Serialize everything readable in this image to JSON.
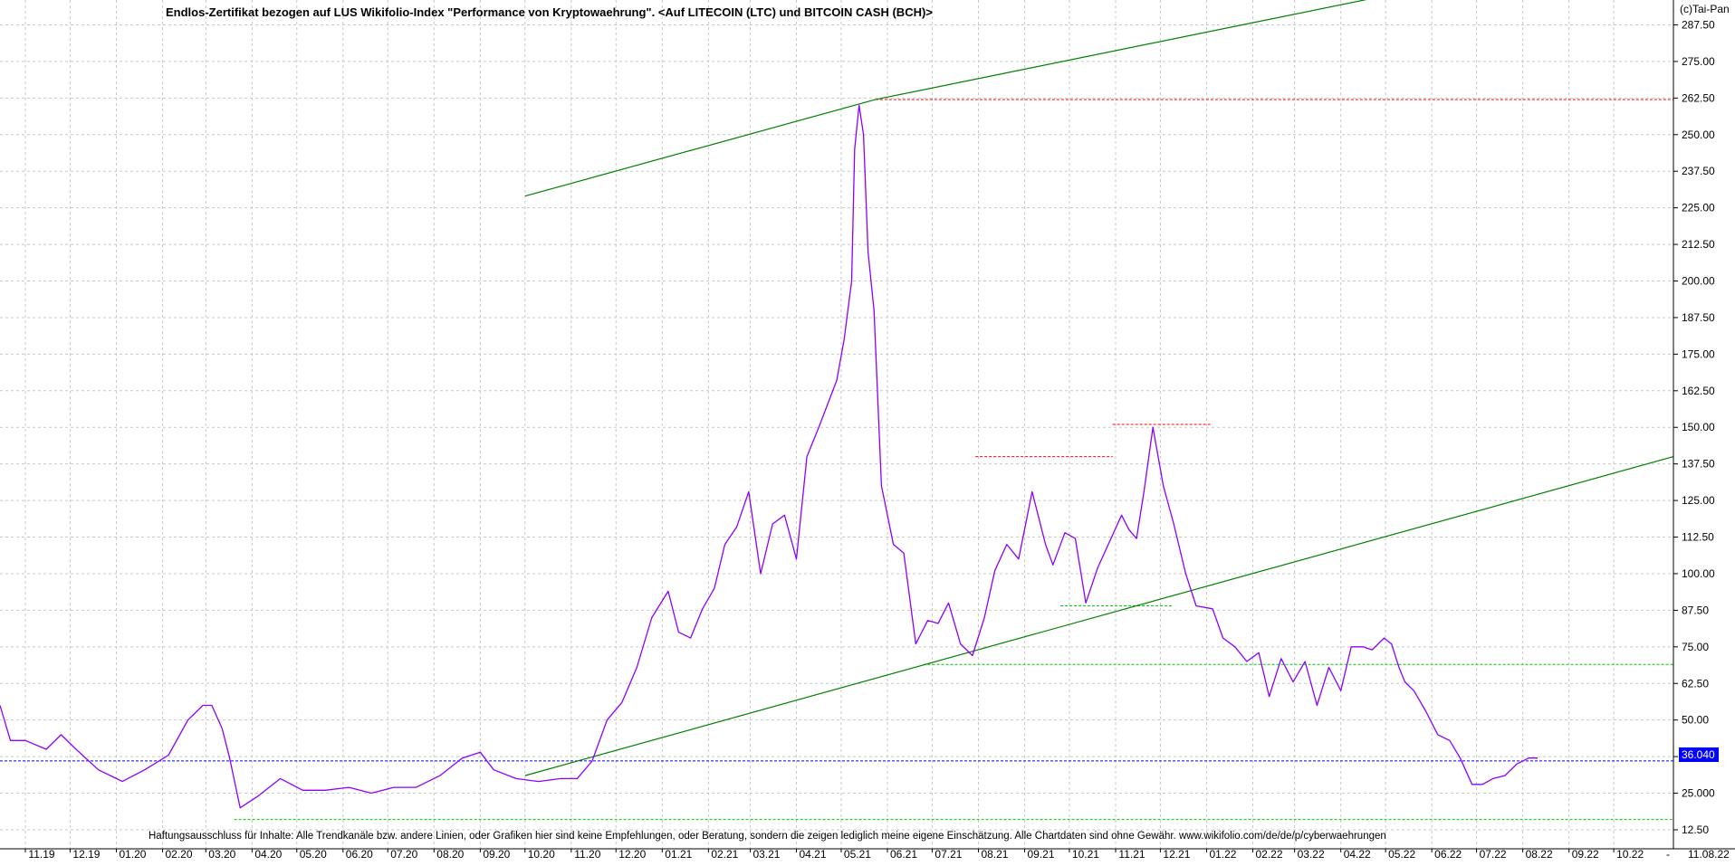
{
  "chart_data": {
    "type": "line",
    "title": "Endlos-Zertifikat bezogen auf LUS Wikifolio-Index \"Performance von Kryptowaehrung\". <Auf LITECOIN (LTC) und BITCOIN CASH (BCH)>",
    "copyright": "(c)Tai-Pan",
    "disclaimer": "Haftungsausschluss für Inhalte: Alle Trendkanäle bzw. andere Linien, oder Grafiken hier sind keine Empfehlungen, oder Beratung, sondern die zeigen lediglich meine eigene Einschätzung. Alle Chartdaten sind ohne Gewähr.  www.wikifolio.com/de/de/p/cyberwaehrungen",
    "current_value_label": "36.040",
    "current_date_label": "11.08.22",
    "x_ticks": [
      "11.19",
      "12.19",
      "01.20",
      "02.20",
      "03.20",
      "04.20",
      "05.20",
      "06.20",
      "07.20",
      "08.20",
      "09.20",
      "10.20",
      "11.20",
      "12.20",
      "01.21",
      "02.21",
      "03.21",
      "04.21",
      "05.21",
      "06.21",
      "07.21",
      "08.21",
      "09.21",
      "10.21",
      "11.21",
      "12.21",
      "01.22",
      "02.22",
      "03.22",
      "04.22",
      "05.22",
      "06.22",
      "07.22",
      "08.22",
      "09.22",
      "10.22"
    ],
    "x_tick_suffix": "-",
    "y_ticks": [
      "12.50",
      "25.000",
      "37.50",
      "50.00",
      "62.50",
      "75.00",
      "87.50",
      "100.00",
      "112.50",
      "125.00",
      "137.50",
      "150.00",
      "162.50",
      "175.00",
      "187.50",
      "200.00",
      "212.50",
      "225.00",
      "237.50",
      "250.00",
      "262.50",
      "275.00",
      "287.50"
    ],
    "ylim": [
      6,
      296
    ],
    "x_range": [
      "2019-10-15",
      "2022-11-10"
    ],
    "grid": true,
    "series": [
      {
        "color": "#8b00ff",
        "x": [
          "2019-10-15",
          "2019-10-22",
          "2019-11-01",
          "2019-11-15",
          "2019-11-25",
          "2019-12-05",
          "2019-12-20",
          "2020-01-05",
          "2020-01-20",
          "2020-02-05",
          "2020-02-18",
          "2020-02-28",
          "2020-03-05",
          "2020-03-12",
          "2020-03-17",
          "2020-03-24",
          "2020-04-05",
          "2020-04-20",
          "2020-05-05",
          "2020-05-20",
          "2020-06-05",
          "2020-06-20",
          "2020-07-05",
          "2020-07-20",
          "2020-08-05",
          "2020-08-20",
          "2020-09-01",
          "2020-09-10",
          "2020-09-25",
          "2020-10-10",
          "2020-10-25",
          "2020-11-05",
          "2020-11-15",
          "2020-11-25",
          "2020-12-05",
          "2020-12-15",
          "2020-12-25",
          "2021-01-05",
          "2021-01-12",
          "2021-01-20",
          "2021-01-28",
          "2021-02-05",
          "2021-02-12",
          "2021-02-20",
          "2021-02-28",
          "2021-03-08",
          "2021-03-16",
          "2021-03-24",
          "2021-04-01",
          "2021-04-08",
          "2021-04-16",
          "2021-04-22",
          "2021-04-28",
          "2021-05-03",
          "2021-05-08",
          "2021-05-10",
          "2021-05-13",
          "2021-05-16",
          "2021-05-19",
          "2021-05-23",
          "2021-05-28",
          "2021-06-05",
          "2021-06-12",
          "2021-06-20",
          "2021-06-28",
          "2021-07-05",
          "2021-07-12",
          "2021-07-20",
          "2021-07-28",
          "2021-08-05",
          "2021-08-12",
          "2021-08-20",
          "2021-08-28",
          "2021-09-06",
          "2021-09-10",
          "2021-09-15",
          "2021-09-20",
          "2021-09-28",
          "2021-10-05",
          "2021-10-12",
          "2021-10-20",
          "2021-10-28",
          "2021-11-05",
          "2021-11-10",
          "2021-11-15",
          "2021-11-20",
          "2021-11-26",
          "2021-12-03",
          "2021-12-10",
          "2021-12-18",
          "2021-12-25",
          "2022-01-05",
          "2022-01-12",
          "2022-01-20",
          "2022-01-28",
          "2022-02-05",
          "2022-02-12",
          "2022-02-20",
          "2022-02-28",
          "2022-03-08",
          "2022-03-16",
          "2022-03-24",
          "2022-04-01",
          "2022-04-08",
          "2022-04-16",
          "2022-04-22",
          "2022-04-30",
          "2022-05-05",
          "2022-05-10",
          "2022-05-14",
          "2022-05-20",
          "2022-05-28",
          "2022-06-05",
          "2022-06-13",
          "2022-06-20",
          "2022-06-28",
          "2022-07-05",
          "2022-07-12",
          "2022-07-20",
          "2022-07-28",
          "2022-08-05",
          "2022-08-11"
        ],
        "y": [
          55,
          43,
          43,
          40,
          45,
          40,
          33,
          29,
          33,
          38,
          50,
          55,
          55,
          47,
          37,
          20,
          24,
          30,
          26,
          26,
          27,
          25,
          27,
          27,
          31,
          37,
          39,
          33,
          30,
          29,
          30,
          30,
          36,
          50,
          56,
          68,
          85,
          94,
          80,
          78,
          88,
          95,
          110,
          116,
          128,
          100,
          117,
          120,
          105,
          140,
          150,
          158,
          166,
          180,
          200,
          245,
          260,
          250,
          210,
          190,
          130,
          110,
          107,
          76,
          84,
          83,
          90,
          76,
          72,
          85,
          101,
          110,
          105,
          128,
          120,
          110,
          103,
          114,
          112,
          90,
          102,
          111,
          120,
          115,
          112,
          128,
          150,
          130,
          117,
          100,
          89,
          88,
          78,
          75,
          70,
          73,
          58,
          71,
          63,
          70,
          55,
          68,
          60,
          75,
          75,
          74,
          78,
          76,
          68,
          63,
          60,
          53,
          45,
          43,
          37,
          28,
          28,
          30,
          31,
          35,
          37,
          37
        ]
      }
    ],
    "annotations": {
      "horizontal_reference_lines": [
        {
          "color": "#0000ff",
          "value": 36.04,
          "style": "dotted"
        },
        {
          "color": "#ff0000",
          "value": 262,
          "from": "2021-05-24",
          "to": "2022-11-10",
          "style": "dotted"
        },
        {
          "color": "#ff0000",
          "value": 140,
          "from": "2021-07-30",
          "to": "2021-10-30",
          "style": "dotted"
        },
        {
          "color": "#ff0000",
          "value": 151,
          "from": "2021-10-30",
          "to": "2022-01-05",
          "style": "dotted"
        },
        {
          "color": "#00cc00",
          "value": 89,
          "from": "2021-09-25",
          "to": "2021-12-10",
          "style": "dotted"
        },
        {
          "color": "#00cc00",
          "value": 69,
          "from": "2021-06-25",
          "to": "2022-11-10",
          "style": "dotted"
        },
        {
          "color": "#00cc00",
          "value": 16,
          "from": "2020-03-20",
          "to": "2022-11-10",
          "style": "dotted"
        }
      ],
      "trend_lines": [
        {
          "color": "#008000",
          "from": {
            "x": "2020-10-01",
            "y": 229
          },
          "to": {
            "x": "2021-05-24",
            "y": 262
          }
        },
        {
          "color": "#008000",
          "from": {
            "x": "2021-05-24",
            "y": 262
          },
          "to": {
            "x": "2022-05-06",
            "y": 298
          }
        },
        {
          "color": "#008000",
          "from": {
            "x": "2020-10-01",
            "y": 31
          },
          "to": {
            "x": "2022-11-10",
            "y": 140
          }
        }
      ]
    }
  }
}
